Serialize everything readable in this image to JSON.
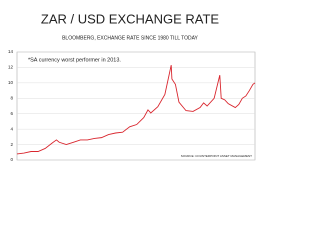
{
  "chart_data": {
    "type": "line",
    "title": "ZAR / USD EXCHANGE RATE",
    "subtitle": "BLOOMBERG, EXCHANGE RATE SINCE 1980 TILL TODAY",
    "annotation": "*SA currency worst performer in 2013.",
    "source": "SOURCE: COUNTERPOINT ASSET MANAGEMENT",
    "x": [
      1980,
      1981,
      1982,
      1983,
      1984,
      1985,
      1985.6,
      1986,
      1987,
      1988,
      1989,
      1990,
      1991,
      1992,
      1993,
      1994,
      1995,
      1996,
      1997,
      1998,
      1998.6,
      1999,
      2000,
      2001,
      2001.9,
      2002,
      2002.5,
      2003,
      2004,
      2005,
      2006,
      2006.5,
      2007,
      2008,
      2008.8,
      2009,
      2009.5,
      2010,
      2011,
      2011.5,
      2012,
      2012.5,
      2013,
      2013.5,
      2013.8
    ],
    "series": [
      {
        "name": "ZAR/USD",
        "color": "#d9262e",
        "values": [
          0.78,
          0.9,
          1.1,
          1.1,
          1.5,
          2.2,
          2.6,
          2.3,
          2.0,
          2.3,
          2.6,
          2.6,
          2.8,
          2.9,
          3.3,
          3.5,
          3.6,
          4.3,
          4.6,
          5.5,
          6.5,
          6.1,
          6.9,
          8.5,
          12.3,
          10.5,
          9.8,
          7.5,
          6.4,
          6.3,
          6.8,
          7.4,
          7.0,
          8.0,
          11.0,
          8.0,
          7.8,
          7.3,
          6.8,
          7.2,
          8.0,
          8.3,
          9.0,
          9.8,
          10.0
        ]
      }
    ],
    "xlim": [
      1980,
      2013.8
    ],
    "ylim": [
      0,
      14
    ],
    "yticks": [
      0,
      2,
      4,
      6,
      8,
      10,
      12,
      14
    ],
    "grid": true
  }
}
